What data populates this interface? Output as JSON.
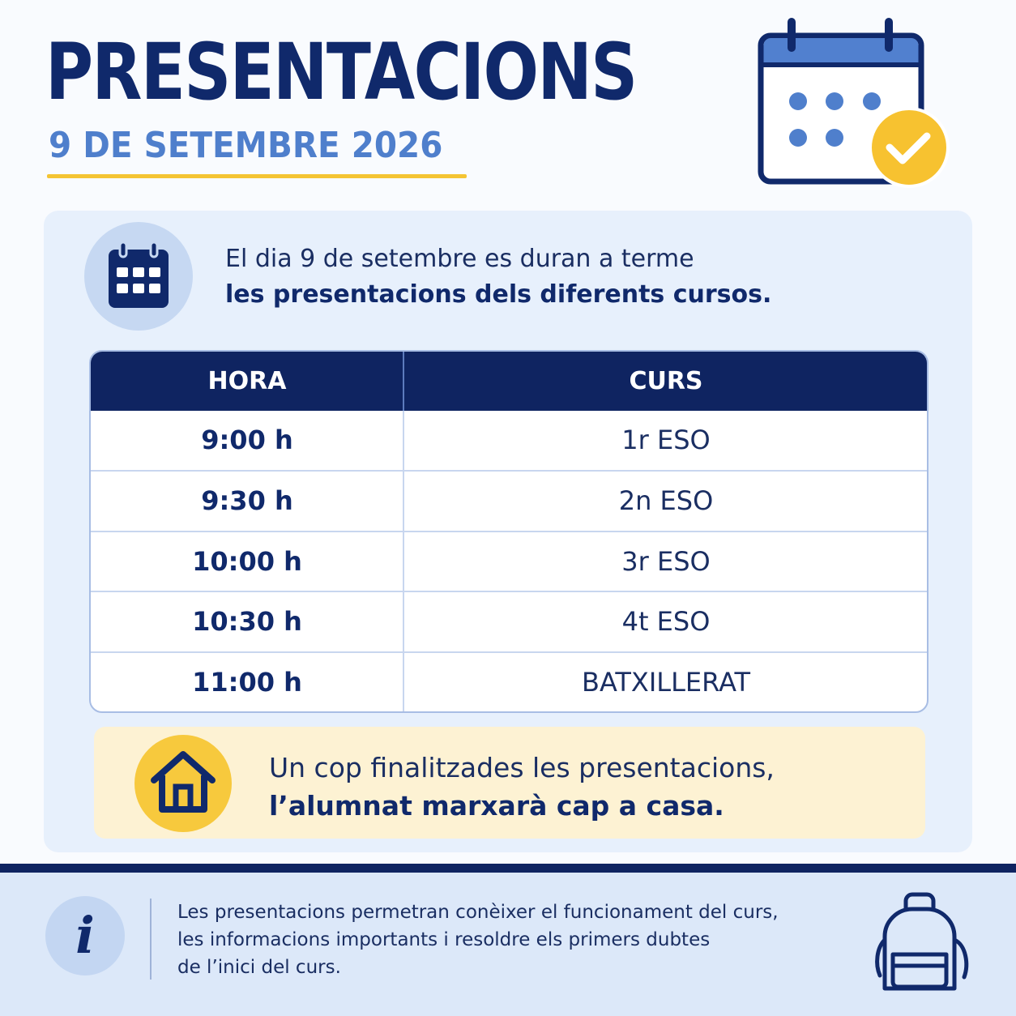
{
  "header": {
    "title": "PRESENTACIONS",
    "date": "9 DE SETEMBRE 2026",
    "icon": "calendar-check-icon"
  },
  "intro": {
    "icon": "calendar-icon",
    "line1": "El dia 9 de setembre es duran a terme",
    "line2": "les presentacions dels diferents cursos."
  },
  "schedule": {
    "headers": {
      "time": "HORA",
      "course": "CURS"
    },
    "rows": [
      {
        "time": "9:00 h",
        "course": "1r ESO"
      },
      {
        "time": "9:30 h",
        "course": "2n ESO"
      },
      {
        "time": "10:00 h",
        "course": "3r ESO"
      },
      {
        "time": "10:30 h",
        "course": "4t ESO"
      },
      {
        "time": "11:00 h",
        "course": "BATXILLERAT"
      }
    ]
  },
  "notice": {
    "icon": "house-icon",
    "line1": "Un cop finalitzades les presentacions,",
    "line2": "l’alumnat marxarà cap a casa."
  },
  "footer": {
    "icon": "info-icon",
    "info_glyph": "i",
    "lines": [
      "Les presentacions permetran conèixer el funcionament del curs,",
      "les informacions importants i resoldre els primers dubtes",
      "de l’inici del curs."
    ],
    "decor_icon": "backpack-icon"
  },
  "colors": {
    "navy": "#0f2461",
    "blue_accent": "#4f7fcc",
    "yellow": "#f4c433",
    "card_bg": "#e7f0fc",
    "note_bg": "#fdf2d3"
  }
}
